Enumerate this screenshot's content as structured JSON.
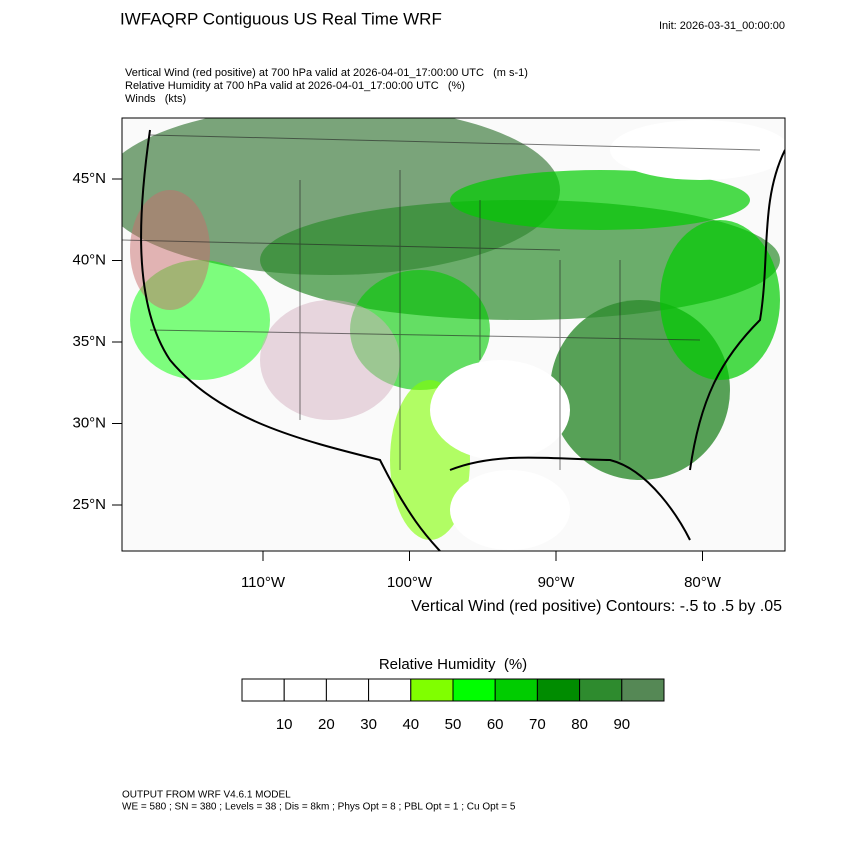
{
  "header": {
    "title": "IWFAQRP Contiguous US Real Time WRF",
    "init": "Init: 2026-03-31_00:00:00"
  },
  "fields": [
    "Vertical Wind (red positive) at 700 hPa valid at 2026-04-01_17:00:00 UTC   (m s-1)",
    "Relative Humidity at 700 hPa valid at 2026-04-01_17:00:00 UTC   (%)",
    "Winds   (kts)"
  ],
  "map": {
    "lat_labels": [
      "45°N",
      "40°N",
      "35°N",
      "30°N",
      "25°N"
    ],
    "lon_labels": [
      "110°W",
      "100°W",
      "90°W",
      "80°W"
    ],
    "contour_note": "Vertical Wind (red positive) Contours: -.5 to .5 by .05"
  },
  "colorbar": {
    "title": "Relative Humidity  (%)",
    "labels": [
      "10",
      "20",
      "30",
      "40",
      "50",
      "60",
      "70",
      "80",
      "90"
    ],
    "colors": [
      "#ffffff",
      "#ffffff",
      "#ffffff",
      "#ffffff",
      "#80ff00",
      "#00ff00",
      "#00cc00",
      "#008c00",
      "#2e8b2e",
      "#558855"
    ]
  },
  "footer": {
    "line1": "OUTPUT FROM WRF V4.6.1 MODEL",
    "line2": "WE = 580 ; SN = 380 ; Levels = 38 ; Dis = 8km ; Phys Opt = 8 ; PBL Opt = 1 ; Cu Opt = 5"
  }
}
